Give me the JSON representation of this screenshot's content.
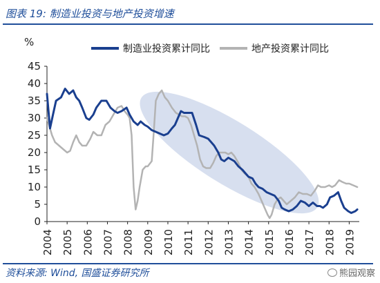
{
  "figure_title": "图表 19:  制造业投资与地产投资增速",
  "source": "资料来源:  Wind, 国盛证券研究所",
  "watermark": "熊园观察",
  "colors": {
    "manufacturing": "#1a3f8f",
    "real_estate": "#b3b3b3",
    "ellipse": "#c9d4ea",
    "brand": "#1f4e9a"
  },
  "chart_data": {
    "type": "line",
    "ylabel": "%",
    "ylim": [
      0,
      45
    ],
    "yticks": [
      0,
      5,
      10,
      15,
      20,
      25,
      30,
      35,
      40,
      45
    ],
    "xlim": [
      2004.0,
      2019.5
    ],
    "xticks": [
      "2004",
      "2005",
      "2006",
      "2007",
      "2008",
      "2009",
      "2010",
      "2011",
      "2012",
      "2013",
      "2014",
      "2015",
      "2016",
      "2017",
      "2018",
      "2019"
    ],
    "legend_position": "top",
    "series": [
      {
        "name": "制造业投资累计同比",
        "color": "#1a3f8f",
        "points": [
          [
            2004.0,
            37
          ],
          [
            2004.15,
            27
          ],
          [
            2004.3,
            31
          ],
          [
            2004.45,
            35
          ],
          [
            2004.7,
            36
          ],
          [
            2004.9,
            38.5
          ],
          [
            2005.1,
            37
          ],
          [
            2005.3,
            38
          ],
          [
            2005.45,
            36
          ],
          [
            2005.6,
            35
          ],
          [
            2005.75,
            33
          ],
          [
            2005.95,
            30
          ],
          [
            2006.1,
            29.5
          ],
          [
            2006.3,
            31
          ],
          [
            2006.45,
            33
          ],
          [
            2006.7,
            35
          ],
          [
            2006.95,
            35
          ],
          [
            2007.15,
            33
          ],
          [
            2007.35,
            32
          ],
          [
            2007.5,
            31.5
          ],
          [
            2007.7,
            32
          ],
          [
            2007.95,
            33
          ],
          [
            2008.1,
            31
          ],
          [
            2008.3,
            29
          ],
          [
            2008.5,
            28
          ],
          [
            2008.65,
            29
          ],
          [
            2008.85,
            28
          ],
          [
            2009.0,
            27.5
          ],
          [
            2009.2,
            26.5
          ],
          [
            2009.4,
            26
          ],
          [
            2009.6,
            25.5
          ],
          [
            2009.8,
            25
          ],
          [
            2010.0,
            25.5
          ],
          [
            2010.2,
            27
          ],
          [
            2010.35,
            28
          ],
          [
            2010.5,
            30
          ],
          [
            2010.65,
            32
          ],
          [
            2010.8,
            31.5
          ],
          [
            2011.0,
            31.5
          ],
          [
            2011.2,
            31.5
          ],
          [
            2011.4,
            28
          ],
          [
            2011.55,
            25
          ],
          [
            2011.8,
            24.5
          ],
          [
            2012.0,
            24
          ],
          [
            2012.15,
            23
          ],
          [
            2012.3,
            22
          ],
          [
            2012.5,
            20
          ],
          [
            2012.65,
            18
          ],
          [
            2012.8,
            17.5
          ],
          [
            2013.0,
            18.5
          ],
          [
            2013.15,
            18
          ],
          [
            2013.3,
            17.5
          ],
          [
            2013.5,
            16
          ],
          [
            2013.7,
            15
          ],
          [
            2013.85,
            14
          ],
          [
            2014.0,
            13
          ],
          [
            2014.2,
            12.5
          ],
          [
            2014.35,
            11
          ],
          [
            2014.5,
            10
          ],
          [
            2014.7,
            9.5
          ],
          [
            2014.9,
            8.5
          ],
          [
            2015.1,
            8
          ],
          [
            2015.3,
            7.5
          ],
          [
            2015.5,
            6
          ],
          [
            2015.65,
            4
          ],
          [
            2015.8,
            3.5
          ],
          [
            2016.0,
            3
          ],
          [
            2016.2,
            3.5
          ],
          [
            2016.4,
            4.5
          ],
          [
            2016.6,
            6
          ],
          [
            2016.8,
            5.5
          ],
          [
            2017.0,
            4.5
          ],
          [
            2017.2,
            5.5
          ],
          [
            2017.4,
            4.5
          ],
          [
            2017.55,
            4.5
          ],
          [
            2017.7,
            4
          ],
          [
            2017.9,
            5
          ],
          [
            2018.05,
            7
          ],
          [
            2018.25,
            7.5
          ],
          [
            2018.45,
            8.5
          ],
          [
            2018.6,
            6
          ],
          [
            2018.75,
            4
          ],
          [
            2018.95,
            3
          ],
          [
            2019.1,
            2.5
          ],
          [
            2019.3,
            3
          ],
          [
            2019.4,
            3.5
          ]
        ]
      },
      {
        "name": "地产投资累计同比",
        "color": "#b3b3b3",
        "points": [
          [
            2004.0,
            30
          ],
          [
            2004.1,
            28
          ],
          [
            2004.25,
            25
          ],
          [
            2004.4,
            23
          ],
          [
            2004.6,
            22
          ],
          [
            2004.8,
            21
          ],
          [
            2005.0,
            20
          ],
          [
            2005.15,
            20.5
          ],
          [
            2005.3,
            23
          ],
          [
            2005.45,
            25
          ],
          [
            2005.6,
            23
          ],
          [
            2005.75,
            22
          ],
          [
            2005.95,
            22
          ],
          [
            2006.15,
            24
          ],
          [
            2006.3,
            26
          ],
          [
            2006.5,
            25
          ],
          [
            2006.7,
            25
          ],
          [
            2006.9,
            28
          ],
          [
            2007.1,
            29
          ],
          [
            2007.3,
            31
          ],
          [
            2007.5,
            33
          ],
          [
            2007.7,
            33.5
          ],
          [
            2007.85,
            32
          ],
          [
            2008.0,
            31
          ],
          [
            2008.1,
            30
          ],
          [
            2008.2,
            25
          ],
          [
            2008.3,
            10
          ],
          [
            2008.4,
            3.5
          ],
          [
            2008.5,
            6
          ],
          [
            2008.6,
            10
          ],
          [
            2008.75,
            15
          ],
          [
            2008.9,
            16
          ],
          [
            2009.0,
            16
          ],
          [
            2009.2,
            17.5
          ],
          [
            2009.3,
            26
          ],
          [
            2009.4,
            35
          ],
          [
            2009.55,
            37
          ],
          [
            2009.7,
            38
          ],
          [
            2009.85,
            36
          ],
          [
            2010.0,
            35
          ],
          [
            2010.2,
            33
          ],
          [
            2010.4,
            31.5
          ],
          [
            2010.55,
            31
          ],
          [
            2010.7,
            30.5
          ],
          [
            2010.85,
            30.5
          ],
          [
            2011.0,
            30
          ],
          [
            2011.15,
            28
          ],
          [
            2011.3,
            25
          ],
          [
            2011.45,
            22
          ],
          [
            2011.6,
            18
          ],
          [
            2011.75,
            16
          ],
          [
            2011.9,
            15.5
          ],
          [
            2012.1,
            15.5
          ],
          [
            2012.25,
            17
          ],
          [
            2012.4,
            19
          ],
          [
            2012.55,
            20
          ],
          [
            2012.7,
            20
          ],
          [
            2012.85,
            20
          ],
          [
            2013.0,
            19.5
          ],
          [
            2013.15,
            20
          ],
          [
            2013.3,
            19
          ],
          [
            2013.5,
            17
          ],
          [
            2013.65,
            15
          ],
          [
            2013.8,
            14
          ],
          [
            2014.0,
            13
          ],
          [
            2014.15,
            11
          ],
          [
            2014.3,
            10
          ],
          [
            2014.5,
            8
          ],
          [
            2014.65,
            6
          ],
          [
            2014.8,
            4
          ],
          [
            2014.95,
            2
          ],
          [
            2015.05,
            1
          ],
          [
            2015.15,
            2
          ],
          [
            2015.3,
            5
          ],
          [
            2015.45,
            6.5
          ],
          [
            2015.6,
            7
          ],
          [
            2015.75,
            6
          ],
          [
            2015.9,
            5
          ],
          [
            2016.1,
            6
          ],
          [
            2016.3,
            7
          ],
          [
            2016.5,
            8.5
          ],
          [
            2016.7,
            8
          ],
          [
            2016.9,
            8
          ],
          [
            2017.1,
            7.5
          ],
          [
            2017.3,
            9
          ],
          [
            2017.45,
            10.5
          ],
          [
            2017.6,
            10
          ],
          [
            2017.8,
            10
          ],
          [
            2018.0,
            10.5
          ],
          [
            2018.15,
            10
          ],
          [
            2018.3,
            10.5
          ],
          [
            2018.5,
            12
          ],
          [
            2018.65,
            11.5
          ],
          [
            2018.85,
            11
          ],
          [
            2019.0,
            11
          ],
          [
            2019.2,
            10.5
          ],
          [
            2019.4,
            10
          ]
        ]
      }
    ]
  }
}
